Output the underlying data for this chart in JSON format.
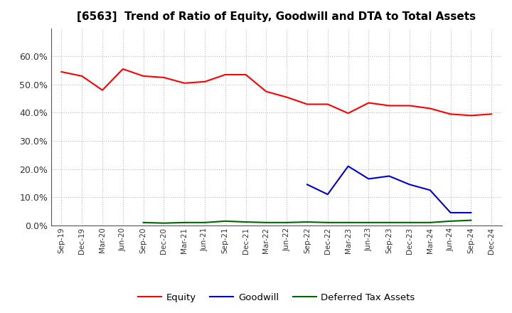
{
  "title": "[6563]  Trend of Ratio of Equity, Goodwill and DTA to Total Assets",
  "x_labels": [
    "Sep-19",
    "Dec-19",
    "Mar-20",
    "Jun-20",
    "Sep-20",
    "Dec-20",
    "Mar-21",
    "Jun-21",
    "Sep-21",
    "Dec-21",
    "Mar-22",
    "Jun-22",
    "Sep-22",
    "Dec-22",
    "Mar-23",
    "Jun-23",
    "Sep-23",
    "Dec-23",
    "Mar-24",
    "Jun-24",
    "Sep-24",
    "Dec-24"
  ],
  "equity": [
    0.545,
    0.53,
    0.48,
    0.555,
    0.53,
    0.525,
    0.505,
    0.51,
    0.535,
    0.535,
    0.475,
    0.455,
    0.43,
    0.43,
    0.398,
    0.435,
    0.425,
    0.425,
    0.415,
    0.395,
    0.39,
    0.395
  ],
  "goodwill": [
    null,
    null,
    null,
    null,
    null,
    null,
    null,
    null,
    null,
    null,
    null,
    null,
    0.145,
    0.11,
    0.21,
    0.165,
    0.175,
    0.145,
    0.125,
    0.045,
    0.045,
    null
  ],
  "dta": [
    null,
    null,
    null,
    null,
    0.01,
    0.008,
    0.01,
    0.01,
    0.015,
    0.012,
    0.01,
    0.01,
    0.012,
    0.01,
    0.01,
    0.01,
    0.01,
    0.01,
    0.01,
    0.015,
    0.018,
    null
  ],
  "equity_color": "#ff0000",
  "goodwill_color": "#0000cc",
  "dta_color": "#006600",
  "ylim": [
    0.0,
    0.7
  ],
  "yticks": [
    0.0,
    0.1,
    0.2,
    0.3,
    0.4,
    0.5,
    0.6
  ],
  "legend_labels": [
    "Equity",
    "Goodwill",
    "Deferred Tax Assets"
  ],
  "background_color": "#ffffff",
  "grid_color": "#bbbbbb"
}
